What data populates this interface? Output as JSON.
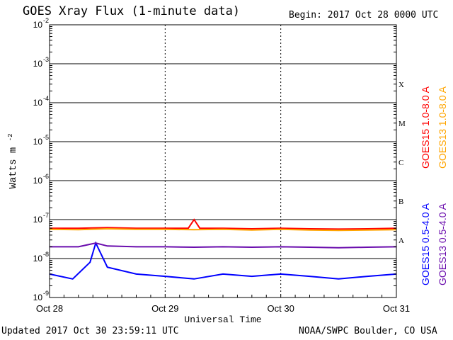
{
  "header": {
    "title": "GOES Xray Flux (1-minute data)",
    "begin": "Begin:  2017 Oct 28 0000 UTC"
  },
  "footer": {
    "updated": "Updated 2017 Oct 30 23:59:11 UTC",
    "credit": "NOAA/SWPC Boulder, CO USA"
  },
  "chart_data": {
    "type": "line",
    "title": "GOES Xray Flux (1-minute data)",
    "xlabel": "Universal Time",
    "ylabel": "Watts m",
    "ylabel_superscript": "-2",
    "y_scale": "log",
    "ylim": [
      1e-09,
      0.01
    ],
    "y_ticks": [
      {
        "mantissa": "10",
        "exp": "-9"
      },
      {
        "mantissa": "10",
        "exp": "-8"
      },
      {
        "mantissa": "10",
        "exp": "-7"
      },
      {
        "mantissa": "10",
        "exp": "-6"
      },
      {
        "mantissa": "10",
        "exp": "-5"
      },
      {
        "mantissa": "10",
        "exp": "-4"
      },
      {
        "mantissa": "10",
        "exp": "-3"
      },
      {
        "mantissa": "10",
        "exp": "-2"
      }
    ],
    "x_ticks": [
      "Oct 28",
      "Oct 29",
      "Oct 30",
      "Oct 31"
    ],
    "xlim_days": [
      0,
      3
    ],
    "flare_classes": [
      {
        "label": "A",
        "flux": 3e-08
      },
      {
        "label": "B",
        "flux": 3e-07
      },
      {
        "label": "C",
        "flux": 3e-06
      },
      {
        "label": "M",
        "flux": 3e-05
      },
      {
        "label": "X",
        "flux": 0.0003
      }
    ],
    "legend_placement": "right",
    "series": [
      {
        "name": "GOES15 1.0-8.0 A",
        "color": "#ff0000",
        "x": [
          0,
          0.25,
          0.5,
          0.75,
          1.0,
          1.2,
          1.25,
          1.3,
          1.5,
          1.75,
          2.0,
          2.25,
          2.5,
          2.75,
          3.0
        ],
        "y": [
          6e-08,
          6e-08,
          6.2e-08,
          6e-08,
          6e-08,
          6e-08,
          1e-07,
          6e-08,
          6e-08,
          5.8e-08,
          6e-08,
          5.8e-08,
          5.7e-08,
          5.8e-08,
          6e-08
        ]
      },
      {
        "name": "GOES13 1.0-8.0 A",
        "color": "#ffa500",
        "x": [
          0,
          0.25,
          0.5,
          0.75,
          1.0,
          1.25,
          1.5,
          1.75,
          2.0,
          2.25,
          2.5,
          2.75,
          3.0
        ],
        "y": [
          5.6e-08,
          5.5e-08,
          5.8e-08,
          5.6e-08,
          5.6e-08,
          5.5e-08,
          5.6e-08,
          5.4e-08,
          5.6e-08,
          5.4e-08,
          5.3e-08,
          5.4e-08,
          5.5e-08
        ]
      },
      {
        "name": "GOES15 0.5-4.0 A",
        "color": "#0000ff",
        "x": [
          0,
          0.2,
          0.35,
          0.4,
          0.5,
          0.75,
          1.0,
          1.25,
          1.5,
          1.75,
          2.0,
          2.25,
          2.5,
          2.75,
          3.0
        ],
        "y": [
          4e-09,
          3e-09,
          8e-09,
          2.5e-08,
          6e-09,
          4e-09,
          3.5e-09,
          3e-09,
          4e-09,
          3.5e-09,
          4e-09,
          3.5e-09,
          3e-09,
          3.5e-09,
          4e-09
        ]
      },
      {
        "name": "GOES13 0.5-4.0 A",
        "color": "#6a0dad",
        "x": [
          0,
          0.25,
          0.4,
          0.5,
          0.75,
          1.0,
          1.25,
          1.5,
          1.75,
          2.0,
          2.25,
          2.5,
          2.75,
          3.0
        ],
        "y": [
          2e-08,
          2e-08,
          2.5e-08,
          2.1e-08,
          2e-08,
          2e-08,
          1.95e-08,
          2e-08,
          1.95e-08,
          2e-08,
          1.95e-08,
          1.9e-08,
          1.95e-08,
          2e-08
        ]
      }
    ]
  }
}
